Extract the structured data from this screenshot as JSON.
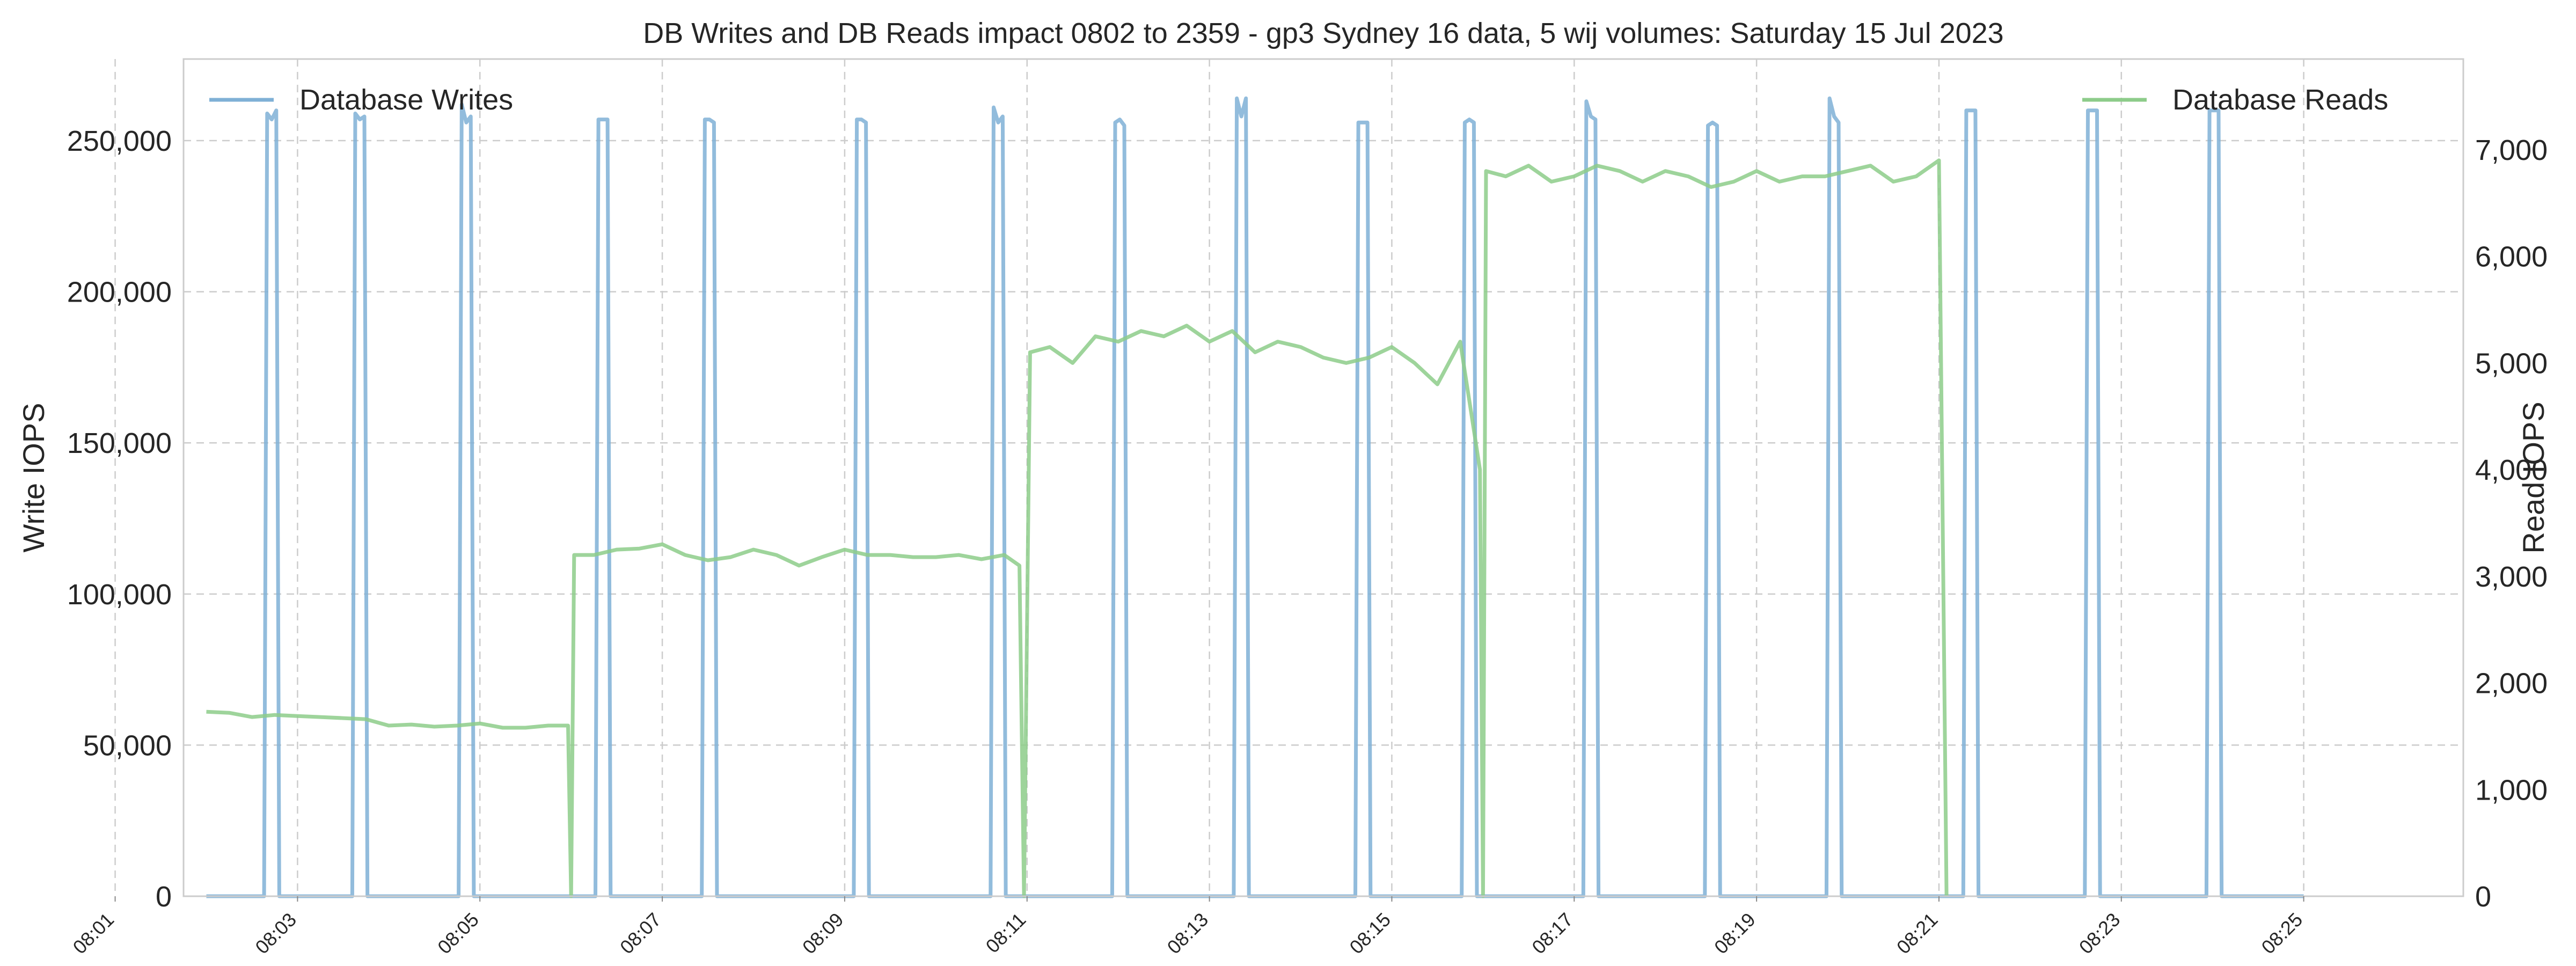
{
  "chart_data": {
    "type": "line",
    "title": "DB Writes and DB Reads impact 0802 to 2359 - gp3 Sydney 16 data, 5 wij volumes: Saturday 15 Jul 2023",
    "xlabel": "",
    "ylabel": "Write IOPS",
    "y2label": "Read IOPS",
    "x_ticks": [
      "08:01",
      "08:03",
      "08:05",
      "08:07",
      "08:09",
      "08:11",
      "08:13",
      "08:15",
      "08:17",
      "08:19",
      "08:21",
      "08:23",
      "08:25"
    ],
    "xlim": [
      "08:01:45",
      "08:26:45"
    ],
    "ylim": [
      0,
      277000
    ],
    "y_ticks": [
      {
        "value": 0,
        "label": "0"
      },
      {
        "value": 50000,
        "label": "50,000"
      },
      {
        "value": 100000,
        "label": "100,000"
      },
      {
        "value": 150000,
        "label": "150,000"
      },
      {
        "value": 200000,
        "label": "200,000"
      },
      {
        "value": 250000,
        "label": "250,000"
      }
    ],
    "y2lim": [
      0,
      7850
    ],
    "y2_ticks": [
      {
        "value": 0,
        "label": "0"
      },
      {
        "value": 1000,
        "label": "1,000"
      },
      {
        "value": 2000,
        "label": "2,000"
      },
      {
        "value": 3000,
        "label": "3,000"
      },
      {
        "value": 4000,
        "label": "4,000"
      },
      {
        "value": 5000,
        "label": "5,000"
      },
      {
        "value": 6000,
        "label": "6,000"
      },
      {
        "value": 7000,
        "label": "7,000"
      }
    ],
    "grid": true,
    "series": [
      {
        "name": "Database Writes",
        "axis": "left",
        "color": "#7fb0d6",
        "legend_position": "top-left",
        "x": [
          "08:02:00",
          "08:02:38",
          "08:02:40",
          "08:02:43",
          "08:02:46",
          "08:02:48",
          "08:03:36",
          "08:03:38",
          "08:03:41",
          "08:03:44",
          "08:03:46",
          "08:04:46",
          "08:04:48",
          "08:04:51",
          "08:04:54",
          "08:04:56",
          "08:06:16",
          "08:06:18",
          "08:06:21",
          "08:06:24",
          "08:06:26",
          "08:07:26",
          "08:07:28",
          "08:07:31",
          "08:07:34",
          "08:07:36",
          "08:09:06",
          "08:09:08",
          "08:09:11",
          "08:09:14",
          "08:09:16",
          "08:10:36",
          "08:10:38",
          "08:10:41",
          "08:10:44",
          "08:10:46",
          "08:11:56",
          "08:11:58",
          "08:12:01",
          "08:12:04",
          "08:12:06",
          "08:13:16",
          "08:13:18",
          "08:13:21",
          "08:13:24",
          "08:13:26",
          "08:14:36",
          "08:14:38",
          "08:14:41",
          "08:14:44",
          "08:14:46",
          "08:15:46",
          "08:15:48",
          "08:15:51",
          "08:15:54",
          "08:15:56",
          "08:17:06",
          "08:17:08",
          "08:17:11",
          "08:17:14",
          "08:17:16",
          "08:18:26",
          "08:18:28",
          "08:18:31",
          "08:18:34",
          "08:18:36",
          "08:19:46",
          "08:19:48",
          "08:19:51",
          "08:19:54",
          "08:19:56",
          "08:21:16",
          "08:21:18",
          "08:21:21",
          "08:21:24",
          "08:21:26",
          "08:22:36",
          "08:22:38",
          "08:22:41",
          "08:22:44",
          "08:22:46",
          "08:23:56",
          "08:23:58",
          "08:24:01",
          "08:24:04",
          "08:24:06",
          "08:25:00"
        ],
        "values": [
          0,
          0,
          259000,
          257000,
          260000,
          0,
          0,
          259000,
          257000,
          258000,
          0,
          0,
          262000,
          256000,
          258000,
          0,
          0,
          257000,
          257000,
          257000,
          0,
          0,
          257000,
          257000,
          256000,
          0,
          0,
          257000,
          257000,
          256000,
          0,
          0,
          261000,
          256000,
          258000,
          0,
          0,
          256000,
          257000,
          255000,
          0,
          0,
          264000,
          258000,
          264000,
          0,
          0,
          256000,
          256000,
          256000,
          0,
          0,
          256000,
          257000,
          256000,
          0,
          0,
          263000,
          258000,
          257000,
          0,
          0,
          255000,
          256000,
          255000,
          0,
          0,
          264000,
          258000,
          256000,
          0,
          0,
          260000,
          260000,
          260000,
          0,
          0,
          260000,
          260000,
          260000,
          0,
          0,
          260000,
          260000,
          260000,
          0,
          0
        ]
      },
      {
        "name": "Database Reads",
        "axis": "right",
        "color": "#8dcc8a",
        "legend_position": "top-right",
        "x": [
          "08:02:00",
          "08:02:15",
          "08:02:30",
          "08:02:45",
          "08:03:00",
          "08:03:15",
          "08:03:30",
          "08:03:45",
          "08:04:00",
          "08:04:15",
          "08:04:30",
          "08:04:45",
          "08:05:00",
          "08:05:15",
          "08:05:30",
          "08:05:45",
          "08:05:58",
          "08:06:00",
          "08:06:02",
          "08:06:15",
          "08:06:30",
          "08:06:45",
          "08:07:00",
          "08:07:15",
          "08:07:30",
          "08:07:45",
          "08:08:00",
          "08:08:15",
          "08:08:30",
          "08:08:45",
          "08:09:00",
          "08:09:15",
          "08:09:30",
          "08:09:45",
          "08:10:00",
          "08:10:15",
          "08:10:30",
          "08:10:45",
          "08:10:55",
          "08:10:58",
          "08:11:02",
          "08:11:15",
          "08:11:30",
          "08:11:45",
          "08:12:00",
          "08:12:15",
          "08:12:30",
          "08:12:45",
          "08:13:00",
          "08:13:15",
          "08:13:30",
          "08:13:45",
          "08:14:00",
          "08:14:15",
          "08:14:30",
          "08:14:45",
          "08:15:00",
          "08:15:15",
          "08:15:30",
          "08:15:45",
          "08:15:58",
          "08:16:00",
          "08:16:02",
          "08:16:15",
          "08:16:30",
          "08:16:45",
          "08:17:00",
          "08:17:15",
          "08:17:30",
          "08:17:45",
          "08:18:00",
          "08:18:15",
          "08:18:30",
          "08:18:45",
          "08:19:00",
          "08:19:15",
          "08:19:30",
          "08:19:45",
          "08:20:00",
          "08:20:15",
          "08:20:30",
          "08:20:45",
          "08:20:55",
          "08:21:00",
          "08:21:05"
        ],
        "values": [
          1730,
          1720,
          1680,
          1700,
          1690,
          1680,
          1670,
          1660,
          1600,
          1610,
          1590,
          1600,
          1620,
          1580,
          1580,
          1600,
          1600,
          0,
          3200,
          3200,
          3250,
          3260,
          3300,
          3200,
          3150,
          3180,
          3250,
          3200,
          3100,
          3180,
          3250,
          3200,
          3200,
          3180,
          3180,
          3200,
          3160,
          3200,
          3100,
          0,
          5100,
          5150,
          5000,
          5250,
          5200,
          5300,
          5250,
          5350,
          5200,
          5300,
          5100,
          5200,
          5150,
          5050,
          5000,
          5050,
          5150,
          5000,
          4800,
          5200,
          4000,
          0,
          6800,
          6750,
          6850,
          6700,
          6750,
          6850,
          6800,
          6700,
          6800,
          6750,
          6650,
          6700,
          6800,
          6700,
          6750,
          6750,
          6800,
          6850,
          6700,
          6750,
          6850,
          6900,
          0
        ]
      }
    ]
  }
}
